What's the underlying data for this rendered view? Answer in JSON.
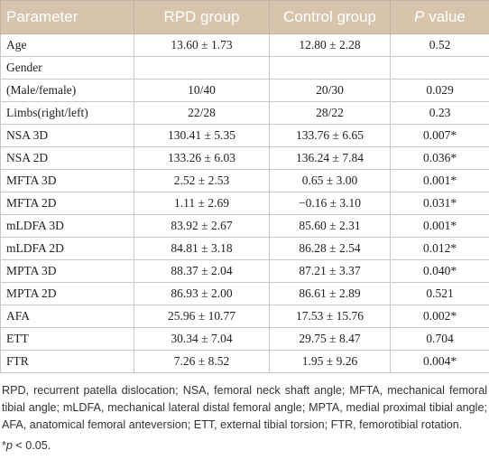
{
  "table": {
    "header": [
      "Parameter",
      "RPD group",
      "Control group",
      {
        "italic": "P",
        "text": " value"
      }
    ],
    "rows": [
      [
        "Age",
        "13.60 ± 1.73",
        "12.80 ± 2.28",
        "0.52"
      ],
      [
        "Gender"
      ],
      [
        "(Male/female)",
        "10/40",
        "20/30",
        "0.029"
      ],
      [
        "Limbs(right/left)",
        "22/28",
        "28/22",
        "0.23"
      ],
      [
        "NSA 3D",
        "130.41 ± 5.35",
        "133.76 ± 6.65",
        "0.007*"
      ],
      [
        "NSA 2D",
        "133.26 ± 6.03",
        "136.24 ± 7.84",
        "0.036*"
      ],
      [
        "MFTA 3D",
        "2.52 ± 2.53",
        "0.65 ± 3.00",
        "0.001*"
      ],
      [
        "MFTA 2D",
        "1.11 ± 2.69",
        "−0.16 ± 3.10",
        "0.031*"
      ],
      [
        "mLDFA 3D",
        "83.92 ± 2.67",
        "85.60 ± 2.31",
        "0.001*"
      ],
      [
        "mLDFA 2D",
        "84.81 ± 3.18",
        "86.28 ± 2.54",
        "0.012*"
      ],
      [
        "MPTA 3D",
        "88.37 ± 2.04",
        "87.21 ± 3.37",
        "0.040*"
      ],
      [
        "MPTA 2D",
        "86.93 ± 2.00",
        "86.61 ± 2.89",
        "0.521"
      ],
      [
        "AFA",
        "25.96 ± 10.77",
        "17.53 ± 15.76",
        "0.002*"
      ],
      [
        "ETT",
        "30.34 ± 7.04",
        "29.75 ± 8.47",
        "0.704"
      ],
      [
        "FTR",
        "7.26 ± 8.52",
        "1.95 ± 9.26",
        "0.004*"
      ]
    ]
  },
  "footnote": {
    "abbreviations": "RPD, recurrent patella dislocation; NSA, femoral neck shaft angle; MFTA, mechanical femoral tibial angle; mLDFA, mechanical lateral distal femoral angle; MPTA, medial proximal tibial angle; AFA, anatomical femoral anteversion; ETT, external tibial torsion; FTR, femorotibial rotation.",
    "significance": {
      "mark": "*",
      "italic": "p",
      "text": " < 0.05."
    }
  }
}
